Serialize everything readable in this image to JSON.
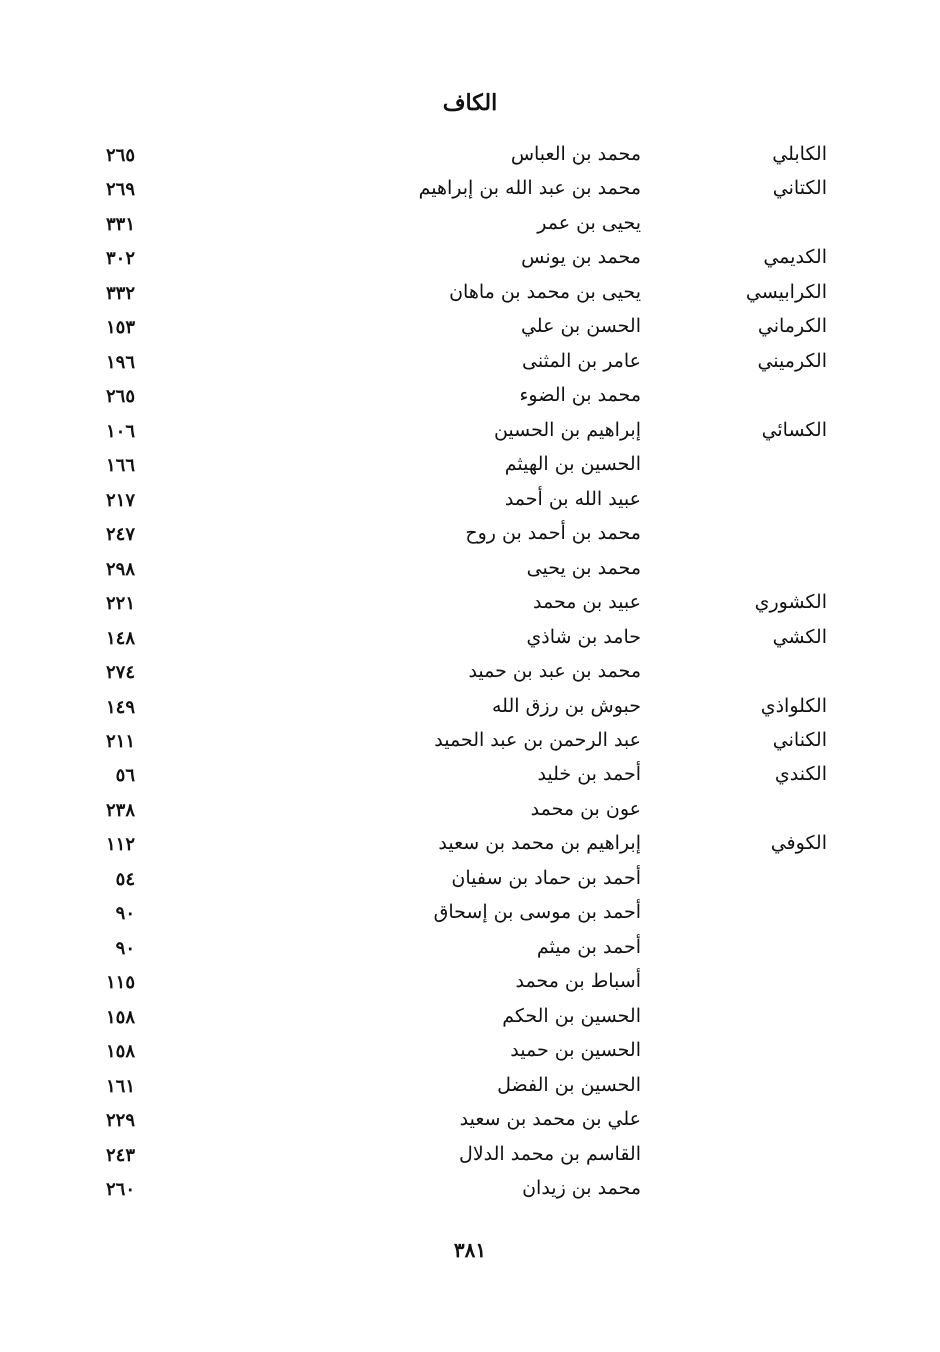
{
  "header": {
    "title": "الكاف"
  },
  "entries": [
    {
      "nisba": "الكابلي",
      "name": "محمد بن العباس",
      "page": "٢٦٥"
    },
    {
      "nisba": "الكتاني",
      "name": "محمد بن عبد الله بن إبراهيم",
      "page": "٢٦٩"
    },
    {
      "nisba": "",
      "name": "يحيى بن عمر",
      "page": "٣٣١"
    },
    {
      "nisba": "الكديمي",
      "name": "محمد بن يونس",
      "page": "٣٠٢"
    },
    {
      "nisba": "الكرابيسي",
      "name": "يحيى بن محمد بن ماهان",
      "page": "٣٣٢"
    },
    {
      "nisba": "الكرماني",
      "name": "الحسن بن علي",
      "page": "١٥٣"
    },
    {
      "nisba": "الكرميني",
      "name": "عامر بن المثنى",
      "page": "١٩٦"
    },
    {
      "nisba": "",
      "name": "محمد بن الضوء",
      "page": "٢٦٥"
    },
    {
      "nisba": "الكسائي",
      "name": "إبراهيم بن الحسين",
      "page": "١٠٦"
    },
    {
      "nisba": "",
      "name": "الحسين بن الهيثم",
      "page": "١٦٦"
    },
    {
      "nisba": "",
      "name": "عبيد الله بن أحمد",
      "page": "٢١٧"
    },
    {
      "nisba": "",
      "name": "محمد بن أحمد بن روح",
      "page": "٢٤٧"
    },
    {
      "nisba": "",
      "name": "محمد بن يحيى",
      "page": "٢٩٨"
    },
    {
      "nisba": "الكشوري",
      "name": "عبيد بن محمد",
      "page": "٢٢١"
    },
    {
      "nisba": "الكشي",
      "name": "حامد بن شاذي",
      "page": "١٤٨"
    },
    {
      "nisba": "",
      "name": "محمد بن عبد بن حميد",
      "page": "٢٧٤"
    },
    {
      "nisba": "الكلواذي",
      "name": "حبوش بن رزق الله",
      "page": "١٤٩"
    },
    {
      "nisba": "الكناني",
      "name": "عبد الرحمن بن عبد الحميد",
      "page": "٢١١"
    },
    {
      "nisba": "الكندي",
      "name": "أحمد بن خليد",
      "page": "٥٦"
    },
    {
      "nisba": "",
      "name": "عون بن محمد",
      "page": "٢٣٨"
    },
    {
      "nisba": "الكوفي",
      "name": "إبراهيم بن محمد بن سعيد",
      "page": "١١٢"
    },
    {
      "nisba": "",
      "name": "أحمد بن حماد بن سفيان",
      "page": "٥٤"
    },
    {
      "nisba": "",
      "name": "أحمد بن موسى بن إسحاق",
      "page": "٩٠"
    },
    {
      "nisba": "",
      "name": "أحمد بن ميثم",
      "page": "٩٠"
    },
    {
      "nisba": "",
      "name": "أسباط بن محمد",
      "page": "١١٥"
    },
    {
      "nisba": "",
      "name": "الحسين بن الحكم",
      "page": "١٥٨"
    },
    {
      "nisba": "",
      "name": "الحسين بن حميد",
      "page": "١٥٨"
    },
    {
      "nisba": "",
      "name": "الحسين بن الفضل",
      "page": "١٦١"
    },
    {
      "nisba": "",
      "name": "علي بن محمد بن سعيد",
      "page": "٢٢٩"
    },
    {
      "nisba": "",
      "name": "القاسم بن محمد الدلال",
      "page": "٢٤٣"
    },
    {
      "nisba": "",
      "name": "محمد بن زيدان",
      "page": "٢٦٠"
    }
  ],
  "footer": {
    "page_number": "٣٨١"
  }
}
